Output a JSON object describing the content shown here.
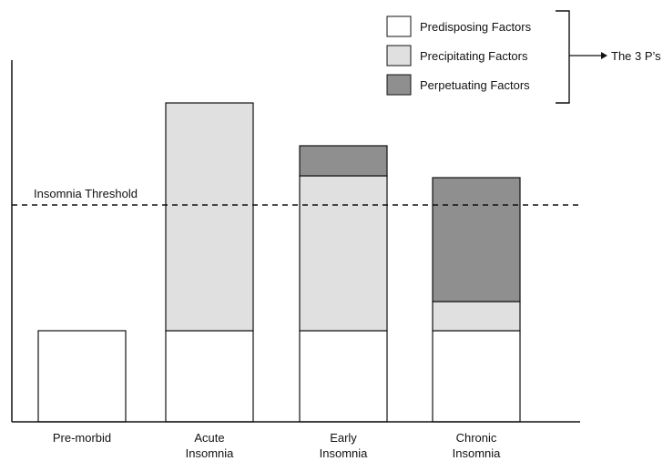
{
  "chart_data": {
    "type": "bar",
    "stacked": true,
    "categories": [
      "Pre-morbid",
      "Acute Insomnia",
      "Early Insomnia",
      "Chronic Insomnia"
    ],
    "category_lines": [
      [
        "Pre-morbid"
      ],
      [
        "Acute",
        "Insomnia"
      ],
      [
        "Early",
        "Insomnia"
      ],
      [
        "Chronic",
        "Insomnia"
      ]
    ],
    "series": [
      {
        "name": "Predisposing Factors",
        "values": [
          1.0,
          1.0,
          1.0,
          1.0
        ],
        "color": "#ffffff"
      },
      {
        "name": "Precipitating Factors",
        "values": [
          0,
          2.5,
          1.7,
          0.32
        ],
        "color": "#e0e0e0"
      },
      {
        "name": "Perpetuating Factors",
        "values": [
          0,
          0,
          0.33,
          1.36
        ],
        "color": "#8f8f8f"
      }
    ],
    "ylim": [
      0,
      4.2
    ],
    "threshold": {
      "label": "Insomnia Threshold",
      "value": 2.38
    },
    "legend": {
      "placement": "top-right",
      "group_label": "The 3 P’s"
    },
    "grid": false,
    "xlabel": "",
    "ylabel": ""
  }
}
